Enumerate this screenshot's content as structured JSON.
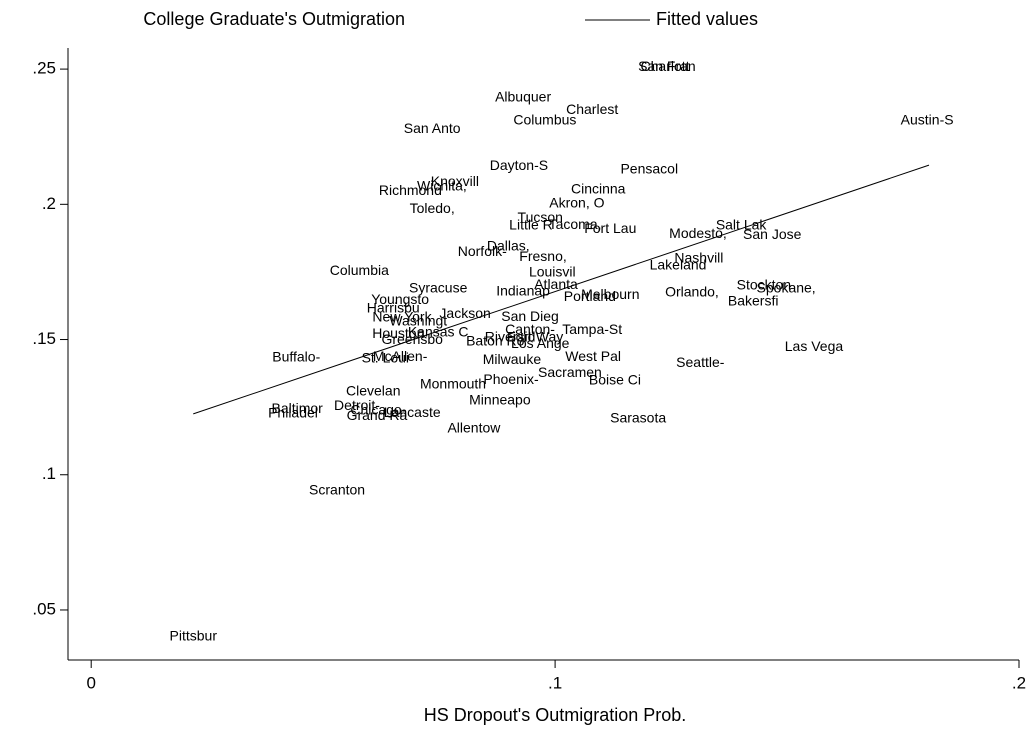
{
  "chart_data": {
    "type": "scatter",
    "xlabel": "HS Dropout's Outmigration Prob.",
    "xlim": [
      -0.005,
      0.2
    ],
    "ylim": [
      0.0315,
      0.2578
    ],
    "xticks": [
      0,
      {
        "value": 0.1,
        "label": ".1"
      },
      {
        "value": 0.2,
        "label": ".2"
      }
    ],
    "yticks": [
      {
        "value": 0.05,
        "label": ".05"
      },
      {
        "value": 0.1,
        "label": ".1"
      },
      {
        "value": 0.15,
        "label": ".15"
      },
      {
        "value": 0.2,
        "label": ".2"
      },
      {
        "value": 0.25,
        "label": ".25"
      }
    ],
    "grid": false,
    "legend": "top",
    "series": [
      {
        "name": "College Graduate's Outmigration",
        "color": "#000000",
        "labels": [
          "Pittsbur",
          "Scranton",
          "Philadel",
          "Baltimor",
          "Detroit-",
          "Chicago-",
          "Grand Ra",
          "Lancaste",
          "Clevelan",
          "Allentow",
          "Minneapo",
          "Monmouth",
          "Phoenix-",
          "Sacramen",
          "Boise Ci",
          "Sarasota",
          "Milwauke",
          "West Pal",
          "Seattle-",
          "Las Vega",
          "Buffalo-",
          "St. Loui",
          "McAllen-",
          "Houston",
          "Greensbo",
          "Kansas C",
          "Baton Ro",
          "Riversid",
          "Fort Way",
          "Los Ange",
          "Canton-",
          "Tampa-St",
          "San Dieg",
          "Harrisbu",
          "New York",
          "Washingt",
          "Jackson",
          "Youngsto",
          "Syracuse",
          "Indianap",
          "Atlanta",
          "Louisvil",
          "Portland",
          "Melbourn",
          "Orlando,",
          "Columbia",
          "Fresno,",
          "Dallas,",
          "Norfolk-",
          "Lakeland",
          "Nashvill",
          "Stockton",
          "Spokane,",
          "Bakersfi",
          "Modesto,",
          "Salt Lak",
          "San Jose",
          "Little R",
          "Tacoma,",
          "Tucson",
          "Fort Lau",
          "Akron, O",
          "Cincinna",
          "Toledo,",
          "Richmond",
          "Wichita,",
          "Knoxvill",
          "Dayton-S",
          "Pensacol",
          "San Anto",
          "Albuquer",
          "Charlest",
          "Columbus",
          "Charlott",
          "San Fran",
          "Austin-S"
        ],
        "x": [
          0.022,
          0.053,
          0.0435,
          0.0444,
          0.0573,
          0.0619,
          0.0616,
          0.0692,
          0.0608,
          0.0825,
          0.0881,
          0.078,
          0.0905,
          0.1032,
          0.1129,
          0.1179,
          0.0907,
          0.1082,
          0.1313,
          0.1558,
          0.0442,
          0.0634,
          0.0666,
          0.0662,
          0.0692,
          0.0748,
          0.0871,
          0.0903,
          0.0957,
          0.0968,
          0.0946,
          0.108,
          0.0946,
          0.0651,
          0.067,
          0.0705,
          0.0806,
          0.0666,
          0.0748,
          0.0931,
          0.1002,
          0.0994,
          0.1075,
          0.1119,
          0.1295,
          0.0578,
          0.0974,
          0.0899,
          0.0843,
          0.1265,
          0.131,
          0.145,
          0.1498,
          0.1427,
          0.1308,
          0.1401,
          0.1468,
          0.0948,
          0.1043,
          0.0968,
          0.1119,
          0.1047,
          0.1093,
          0.0735,
          0.0688,
          0.0756,
          0.0784,
          0.0922,
          0.1203,
          0.0735,
          0.0931,
          0.108,
          0.0978,
          0.1237,
          0.1241,
          0.1802
        ],
        "y": [
          0.04,
          0.094,
          0.1225,
          0.1242,
          0.1254,
          0.1236,
          0.1217,
          0.1228,
          0.1306,
          0.1169,
          0.1273,
          0.1332,
          0.135,
          0.1376,
          0.1347,
          0.1206,
          0.1424,
          0.1435,
          0.1413,
          0.1472,
          0.1432,
          0.1428,
          0.1435,
          0.152,
          0.1498,
          0.1524,
          0.1491,
          0.1506,
          0.1506,
          0.1483,
          0.1535,
          0.1535,
          0.1583,
          0.1613,
          0.158,
          0.1565,
          0.1594,
          0.1646,
          0.1687,
          0.1676,
          0.1701,
          0.1746,
          0.1657,
          0.1664,
          0.1672,
          0.1753,
          0.1805,
          0.1842,
          0.1823,
          0.1772,
          0.1798,
          0.1698,
          0.1687,
          0.1639,
          0.189,
          0.192,
          0.1886,
          0.192,
          0.1923,
          0.1949,
          0.1908,
          0.2001,
          0.2053,
          0.1982,
          0.2049,
          0.2064,
          0.2082,
          0.2141,
          0.2127,
          0.2278,
          0.2393,
          0.2348,
          0.2308,
          0.2507,
          0.2507,
          0.2308
        ]
      },
      {
        "name": "Fitted values",
        "color": "#000000",
        "x": [
          0.022,
          0.1806
        ],
        "y": [
          0.1225,
          0.2145
        ]
      }
    ]
  }
}
